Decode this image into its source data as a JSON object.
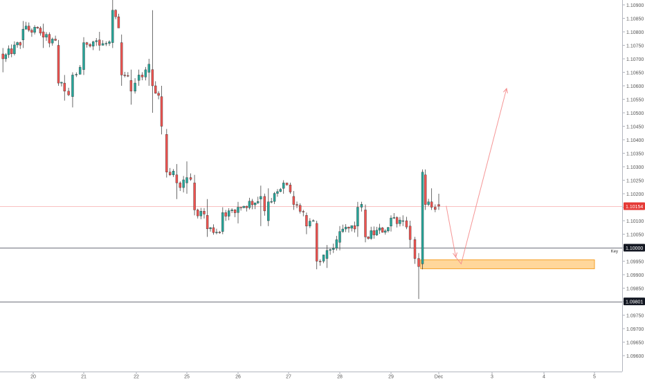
{
  "chart_data": {
    "type": "candlestick",
    "colors": {
      "up": "#26a69a",
      "down": "#ef5350",
      "wick": "#444444",
      "zone_fill": "#ffd089",
      "zone_border": "#f5a028",
      "arrow": "#f48a8a",
      "current_price_line": "#f48a8a",
      "current_price_badge": "#e53935",
      "level_badge": "#131722",
      "grid_text": "#555555"
    },
    "ylim": [
      1.0955,
      1.10925
    ],
    "xlim": [
      -0.65,
      11.05
    ],
    "y_ticks": [
      "1.10900",
      "1.10850",
      "1.10800",
      "1.10750",
      "1.10700",
      "1.10650",
      "1.10600",
      "1.10550",
      "1.10500",
      "1.10450",
      "1.10400",
      "1.10350",
      "1.10300",
      "1.10250",
      "1.10200",
      "1.10150",
      "1.10100",
      "1.10050",
      "1.10000",
      "1.09950",
      "1.09900",
      "1.09850",
      "1.09800",
      "1.09750",
      "1.09700",
      "1.09650",
      "1.09600"
    ],
    "x_ticks": [
      {
        "label": "20",
        "day": 0
      },
      {
        "label": "21",
        "day": 1
      },
      {
        "label": "22",
        "day": 2
      },
      {
        "label": "25",
        "day": 3
      },
      {
        "label": "26",
        "day": 4
      },
      {
        "label": "27",
        "day": 5
      },
      {
        "label": "28",
        "day": 6
      },
      {
        "label": "29",
        "day": 7
      },
      {
        "label": "Dec",
        "day": 8
      },
      {
        "label": "3",
        "day": 9
      },
      {
        "label": "4",
        "day": 10
      },
      {
        "label": "5",
        "day": 11
      }
    ],
    "price_labels": [
      {
        "value": 1.10154,
        "label": "1.10154",
        "kind": "current"
      },
      {
        "value": 1.1,
        "label": "1.10000",
        "kind": "level"
      },
      {
        "value": 1.09801,
        "label": "1.09801",
        "kind": "level"
      }
    ],
    "horizontal_lines": [
      {
        "value": 1.10154,
        "style": "current"
      },
      {
        "value": 1.1,
        "style": "key"
      },
      {
        "value": 1.09801,
        "style": "level"
      }
    ],
    "key_label": "Key",
    "zone": {
      "x0": 7.62,
      "x1": 11.0,
      "y0": 1.09922,
      "y1": 1.09955
    },
    "arrow_path": [
      [
        8.14,
        1.10155
      ],
      [
        8.32,
        1.09965
      ],
      [
        8.42,
        1.0994
      ],
      [
        9.28,
        1.1059
      ]
    ],
    "ohlc_anchors": [
      {
        "day": -0.6,
        "o": 1.10718,
        "h": 1.1074,
        "l": 1.1065,
        "c": 1.107
      },
      {
        "day": -0.2,
        "o": 1.1077,
        "h": 1.1084,
        "l": 1.1074,
        "c": 1.1081
      },
      {
        "day": 0.2,
        "o": 1.108,
        "h": 1.1083,
        "l": 1.1074,
        "c": 1.1078
      },
      {
        "day": 0.5,
        "o": 1.1075,
        "h": 1.1077,
        "l": 1.106,
        "c": 1.1061
      },
      {
        "day": 0.62,
        "o": 1.1061,
        "h": 1.1064,
        "l": 1.10545,
        "c": 1.1058
      },
      {
        "day": 0.78,
        "o": 1.1056,
        "h": 1.1065,
        "l": 1.1052,
        "c": 1.1064
      },
      {
        "day": 1.0,
        "o": 1.1066,
        "h": 1.1078,
        "l": 1.1064,
        "c": 1.1076
      },
      {
        "day": 1.3,
        "o": 1.1077,
        "h": 1.108,
        "l": 1.1073,
        "c": 1.1075
      },
      {
        "day": 1.55,
        "o": 1.1076,
        "h": 1.1092,
        "l": 1.1074,
        "c": 1.1088
      },
      {
        "day": 1.72,
        "o": 1.1076,
        "h": 1.1079,
        "l": 1.106,
        "c": 1.1064
      },
      {
        "day": 1.9,
        "o": 1.1062,
        "h": 1.1066,
        "l": 1.1053,
        "c": 1.1058
      },
      {
        "day": 2.05,
        "o": 1.1062,
        "h": 1.1066,
        "l": 1.106,
        "c": 1.1064
      },
      {
        "day": 2.25,
        "o": 1.1065,
        "h": 1.107,
        "l": 1.106,
        "c": 1.1068
      },
      {
        "day": 2.32,
        "o": 1.1066,
        "h": 1.1088,
        "l": 1.105,
        "c": 1.106
      },
      {
        "day": 2.5,
        "o": 1.1056,
        "h": 1.106,
        "l": 1.1042,
        "c": 1.1045
      },
      {
        "day": 2.6,
        "o": 1.1042,
        "h": 1.1044,
        "l": 1.1026,
        "c": 1.1028
      },
      {
        "day": 2.8,
        "o": 1.1027,
        "h": 1.1031,
        "l": 1.1018,
        "c": 1.1024
      },
      {
        "day": 3.0,
        "o": 1.1024,
        "h": 1.1032,
        "l": 1.102,
        "c": 1.1026
      },
      {
        "day": 3.15,
        "o": 1.1024,
        "h": 1.1027,
        "l": 1.1012,
        "c": 1.1014
      },
      {
        "day": 3.4,
        "o": 1.1012,
        "h": 1.1018,
        "l": 1.1004,
        "c": 1.1007
      },
      {
        "day": 3.7,
        "o": 1.1006,
        "h": 1.1015,
        "l": 1.1005,
        "c": 1.1013
      },
      {
        "day": 4.0,
        "o": 1.1013,
        "h": 1.1017,
        "l": 1.1009,
        "c": 1.1015
      },
      {
        "day": 4.45,
        "o": 1.1018,
        "h": 1.1023,
        "l": 1.1008,
        "c": 1.1019
      },
      {
        "day": 4.6,
        "o": 1.101,
        "h": 1.1022,
        "l": 1.1008,
        "c": 1.1017
      },
      {
        "day": 4.9,
        "o": 1.1022,
        "h": 1.1025,
        "l": 1.102,
        "c": 1.1024
      },
      {
        "day": 5.1,
        "o": 1.1019,
        "h": 1.1021,
        "l": 1.1014,
        "c": 1.1016
      },
      {
        "day": 5.35,
        "o": 1.1012,
        "h": 1.1013,
        "l": 1.1005,
        "c": 1.1008
      },
      {
        "day": 5.55,
        "o": 1.1009,
        "h": 1.101,
        "l": 1.0992,
        "c": 1.0995
      },
      {
        "day": 5.75,
        "o": 1.0996,
        "h": 1.1001,
        "l": 1.09925,
        "c": 1.0999
      },
      {
        "day": 6.0,
        "o": 1.1002,
        "h": 1.1008,
        "l": 1.0999,
        "c": 1.1006
      },
      {
        "day": 6.35,
        "o": 1.1008,
        "h": 1.1017,
        "l": 1.1004,
        "c": 1.1015
      },
      {
        "day": 6.5,
        "o": 1.1014,
        "h": 1.1016,
        "l": 1.1002,
        "c": 1.1004
      },
      {
        "day": 7.0,
        "o": 1.1008,
        "h": 1.1012,
        "l": 1.1006,
        "c": 1.1011
      },
      {
        "day": 7.25,
        "o": 1.101,
        "h": 1.1012,
        "l": 1.1008,
        "c": 1.101
      },
      {
        "day": 7.4,
        "o": 1.1008,
        "h": 1.101,
        "l": 1.1,
        "c": 1.1003
      },
      {
        "day": 7.5,
        "o": 1.1003,
        "h": 1.1004,
        "l": 1.0994,
        "c": 1.0996
      },
      {
        "day": 7.58,
        "o": 1.0996,
        "h": 1.0998,
        "l": 1.0981,
        "c": 1.0993
      },
      {
        "day": 7.66,
        "o": 1.0994,
        "h": 1.1029,
        "l": 1.0992,
        "c": 1.1028
      },
      {
        "day": 7.72,
        "o": 1.1027,
        "h": 1.1029,
        "l": 1.1014,
        "c": 1.1016
      },
      {
        "day": 7.85,
        "o": 1.1017,
        "h": 1.1022,
        "l": 1.1014,
        "c": 1.1015
      },
      {
        "day": 8.0,
        "o": 1.1016,
        "h": 1.102,
        "l": 1.1014,
        "c": 1.10154
      }
    ]
  }
}
